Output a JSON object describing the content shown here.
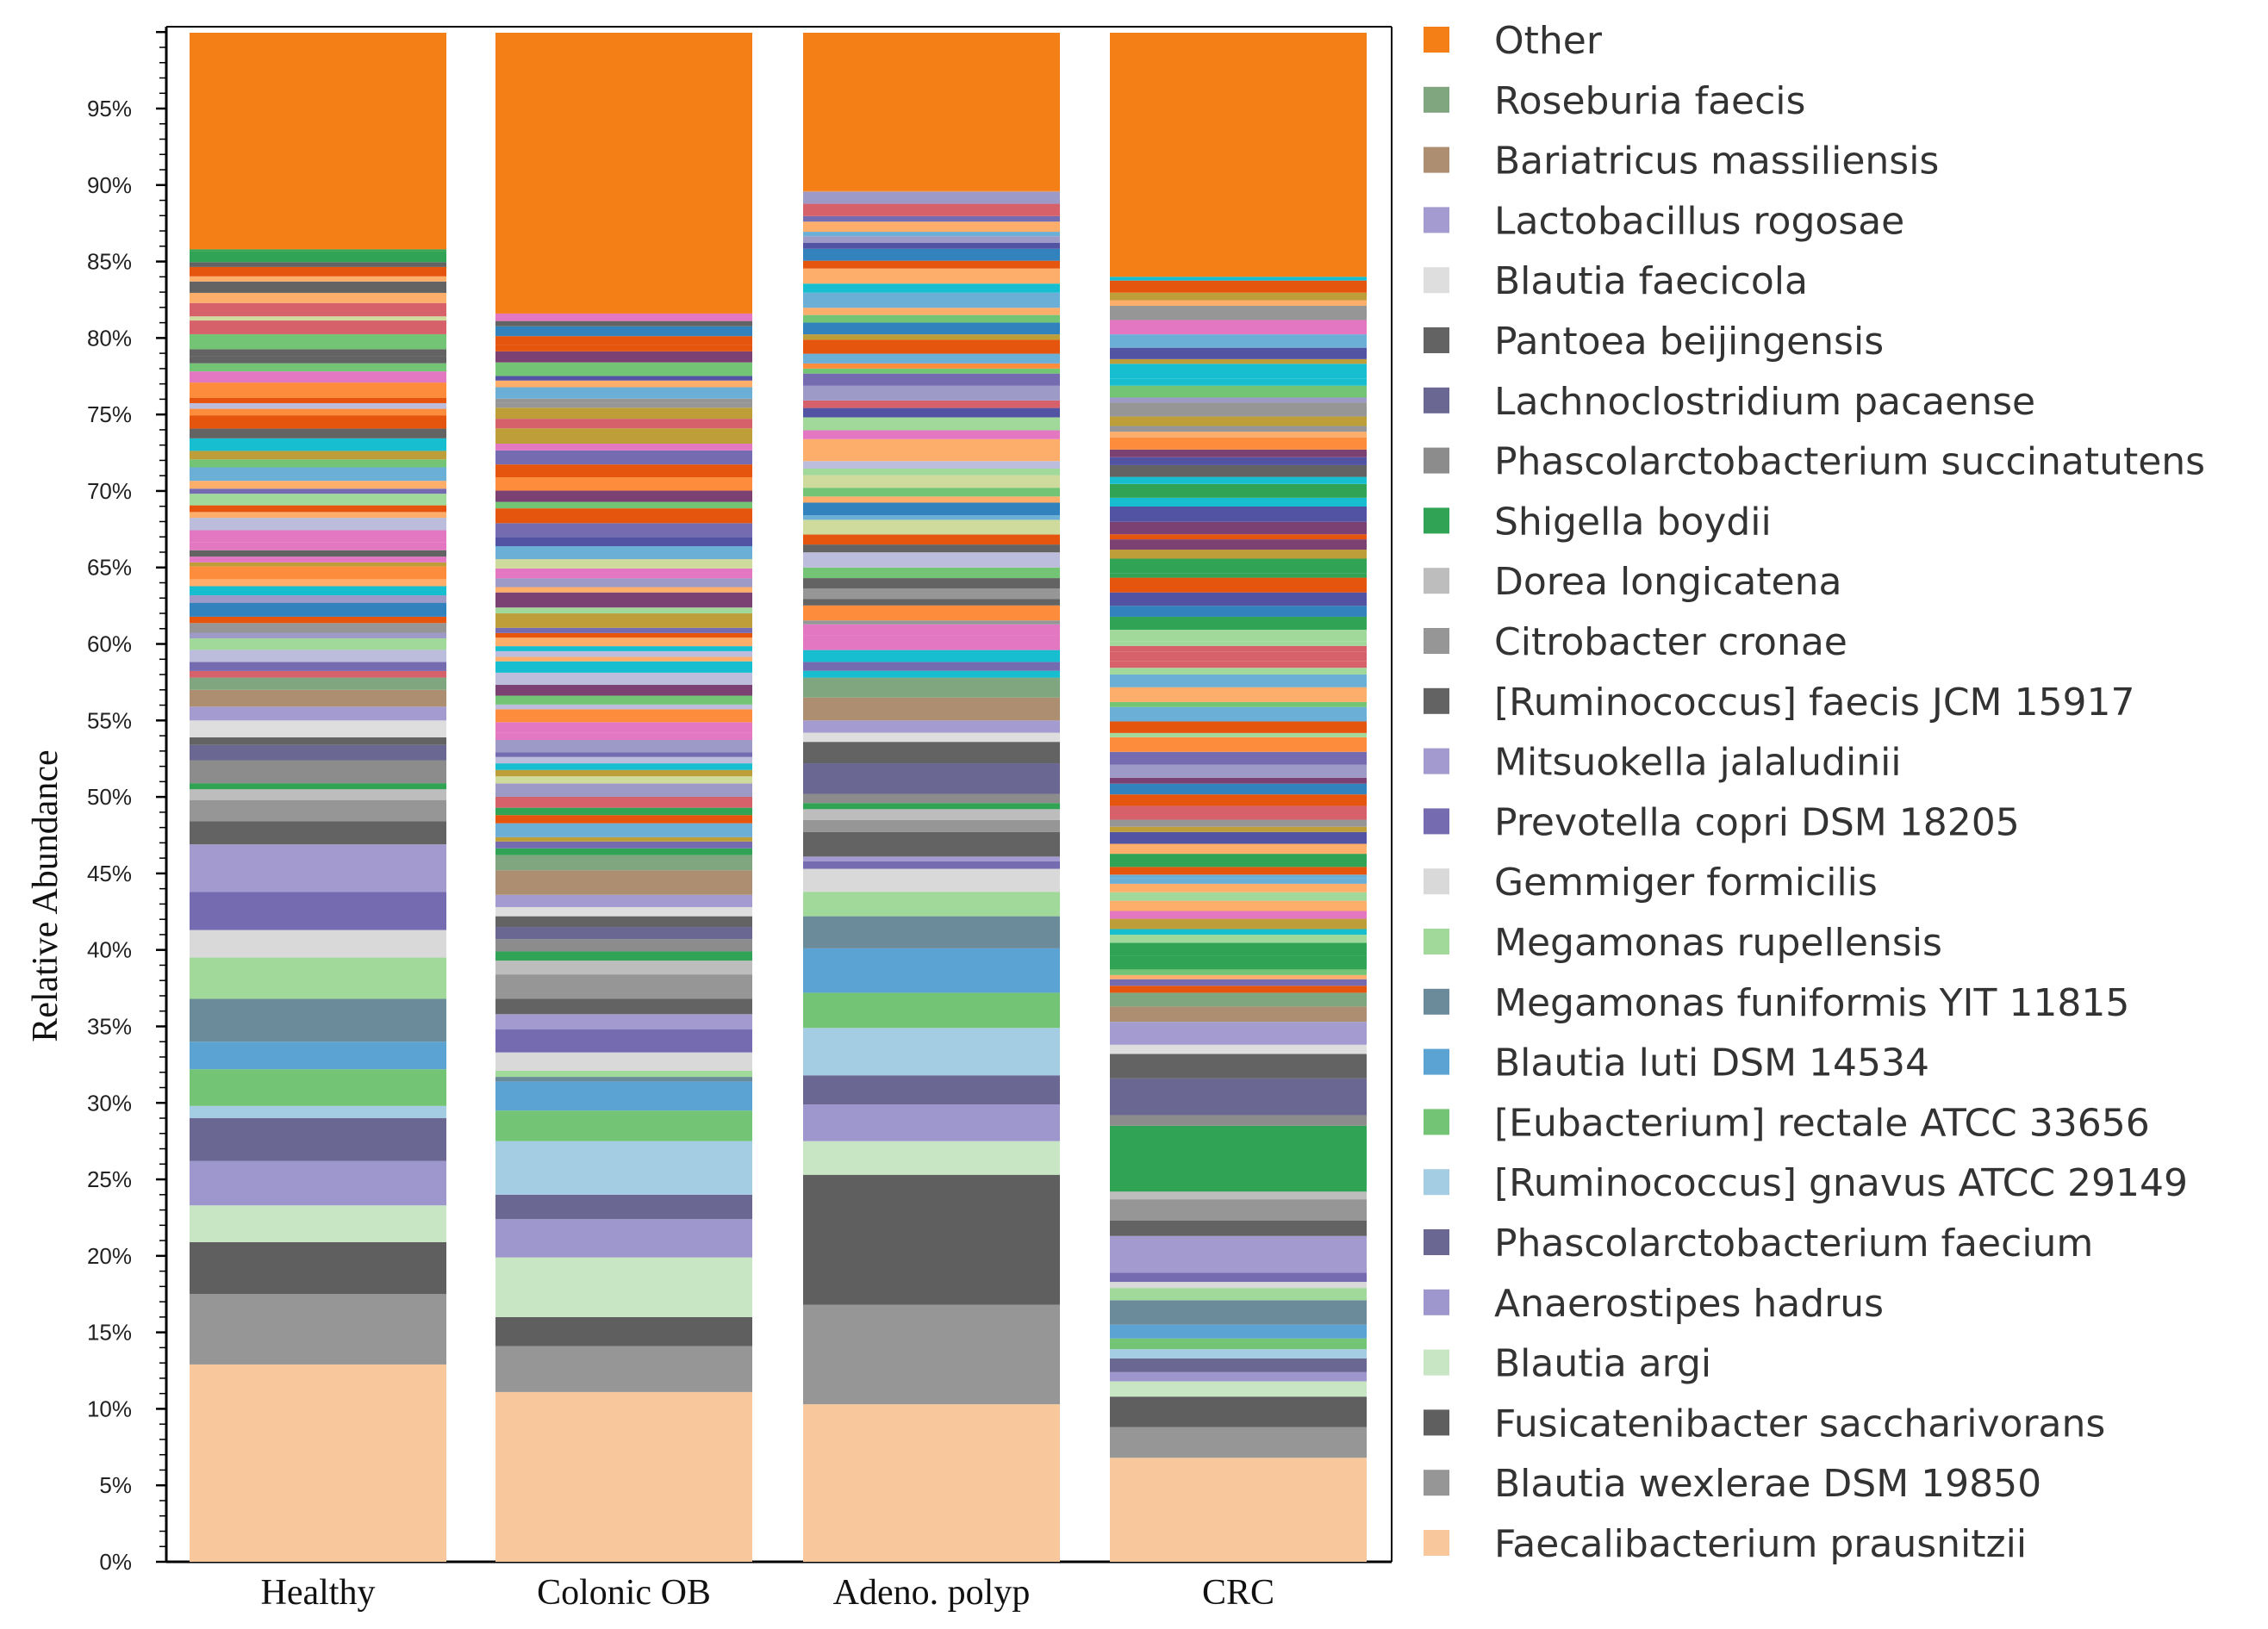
{
  "chart_data": {
    "type": "bar",
    "stacked": true,
    "title": "",
    "xlabel": "",
    "ylabel": "Relative Abundance",
    "ylim": [
      0,
      100
    ],
    "y_ticks": [
      "0%",
      "5%",
      "10%",
      "15%",
      "20%",
      "25%",
      "30%",
      "35%",
      "40%",
      "45%",
      "50%",
      "55%",
      "60%",
      "65%",
      "70%",
      "75%",
      "80%",
      "85%",
      "90%",
      "95%"
    ],
    "categories": [
      "Healthy",
      "Colonic OB",
      "Adeno. polyp",
      "CRC"
    ],
    "legend_position": "right",
    "series": [
      {
        "name": "Faecalibacterium prausnitzii",
        "color": "#f8c89c",
        "values": [
          12.9,
          11.1,
          10.3,
          6.8
        ]
      },
      {
        "name": "Blautia wexlerae DSM 19850",
        "color": "#969696",
        "values": [
          4.6,
          3.0,
          6.5,
          2.0
        ]
      },
      {
        "name": "Fusicatenibacter saccharivorans",
        "color": "#5f5f5f",
        "values": [
          3.4,
          1.9,
          8.5,
          2.0
        ]
      },
      {
        "name": "Blautia argi",
        "color": "#c8e6c4",
        "values": [
          2.4,
          3.9,
          2.2,
          1.0
        ]
      },
      {
        "name": "Anaerostipes hadrus",
        "color": "#9e97cd",
        "values": [
          2.9,
          2.5,
          2.4,
          0.6
        ]
      },
      {
        "name": "Phascolarctobacterium faecium",
        "color": "#6a6793",
        "values": [
          2.8,
          1.6,
          1.9,
          0.9
        ]
      },
      {
        "name": "[Ruminococcus] gnavus ATCC 29149",
        "color": "#a4cde4",
        "values": [
          0.8,
          3.5,
          3.1,
          0.6
        ]
      },
      {
        "name": "[Eubacterium] rectale ATCC 33656",
        "color": "#74c476",
        "values": [
          2.4,
          2.0,
          2.3,
          0.7
        ]
      },
      {
        "name": "Blautia luti DSM 14534",
        "color": "#5aa3d2",
        "values": [
          1.8,
          1.9,
          2.9,
          0.9
        ]
      },
      {
        "name": "Megamonas funiformis YIT 11815",
        "color": "#6b8b9b",
        "values": [
          2.8,
          0.3,
          2.1,
          1.6
        ]
      },
      {
        "name": "Megamonas rupellensis",
        "color": "#a1d99b",
        "values": [
          2.7,
          0.4,
          1.6,
          0.8
        ]
      },
      {
        "name": "Gemmiger formicilis",
        "color": "#d9d9d9",
        "values": [
          1.8,
          1.2,
          1.5,
          0.4
        ]
      },
      {
        "name": "Prevotella copri DSM 18205",
        "color": "#756bb1",
        "values": [
          2.5,
          1.5,
          0.5,
          0.6
        ]
      },
      {
        "name": "Mitsuokella jalaludinii",
        "color": "#a39ad0",
        "values": [
          3.1,
          1.0,
          0.3,
          2.4
        ]
      },
      {
        "name": "[Ruminococcus] faecis JCM 15917",
        "color": "#636363",
        "values": [
          1.5,
          1.0,
          1.6,
          1.0
        ]
      },
      {
        "name": "Citrobacter cronae",
        "color": "#969696",
        "values": [
          1.4,
          1.6,
          0.8,
          1.4
        ]
      },
      {
        "name": "Dorea longicatena",
        "color": "#bdbdbd",
        "values": [
          0.7,
          0.9,
          0.7,
          0.5
        ]
      },
      {
        "name": "Shigella boydii",
        "color": "#31a354",
        "values": [
          0.4,
          0.6,
          0.4,
          4.3
        ]
      },
      {
        "name": "Phascolarctobacterium succinatutens",
        "color": "#8c8c8c",
        "values": [
          1.5,
          0.8,
          0.6,
          0.7
        ]
      },
      {
        "name": "Lachnoclostridium pacaense",
        "color": "#6a6793",
        "values": [
          1.0,
          0.8,
          2.0,
          2.4
        ]
      },
      {
        "name": "Pantoea beijingensis",
        "color": "#636363",
        "values": [
          0.5,
          0.7,
          1.4,
          1.6
        ]
      },
      {
        "name": "Blautia faecicola",
        "color": "#dedede",
        "values": [
          1.1,
          0.6,
          0.6,
          0.6
        ]
      },
      {
        "name": "Lactobacillus rogosae",
        "color": "#a49bd1",
        "values": [
          0.9,
          0.8,
          0.8,
          1.5
        ]
      },
      {
        "name": "Bariatricus massiliensis",
        "color": "#ad8e70",
        "values": [
          1.1,
          1.6,
          1.5,
          1.0
        ]
      },
      {
        "name": "Roseburia faecis",
        "color": "#7fa67f",
        "values": [
          0.8,
          1.0,
          1.3,
          0.9
        ]
      },
      {
        "name": "Other",
        "color": "#f57f17",
        "values": [
          14.2,
          18.4,
          10.4,
          16.0
        ]
      }
    ]
  },
  "misc_band_colors": [
    "#6baed6",
    "#e6550d",
    "#fdae6b",
    "#31a354",
    "#a1d99b",
    "#756bb1",
    "#bcbddc",
    "#969696",
    "#3182bd",
    "#fd8d3c",
    "#74c476",
    "#9e9ac8",
    "#636363",
    "#e377c2",
    "#17becf",
    "#bd9e39",
    "#d6616b",
    "#7b4173",
    "#5254a3",
    "#cedb9c"
  ],
  "misc_band_seed": [
    17,
    43,
    71,
    97
  ]
}
